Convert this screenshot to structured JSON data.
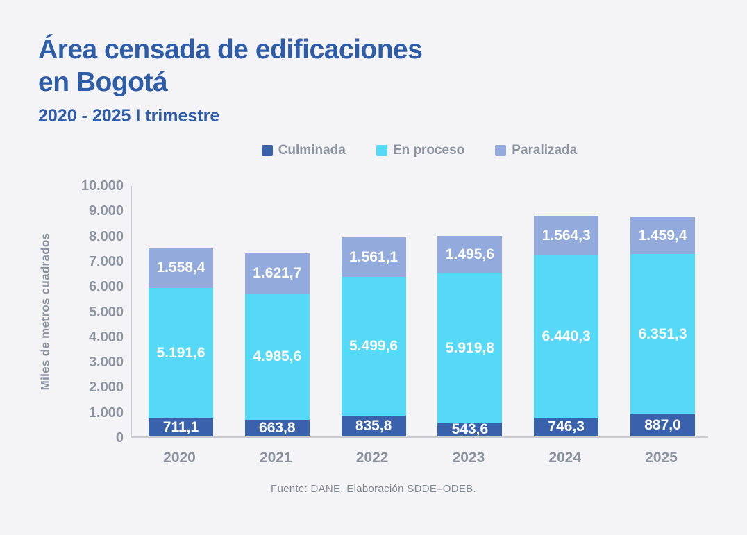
{
  "header": {
    "title_line1": "Área censada de edificaciones",
    "title_line2": "en Bogotá",
    "subtitle": "2020 - 2025 I trimestre"
  },
  "legend": [
    {
      "label": "Culminada",
      "color": "#3a62ac"
    },
    {
      "label": "En proceso",
      "color": "#55d9f7"
    },
    {
      "label": "Paralizada",
      "color": "#92abdc"
    }
  ],
  "chart_data": {
    "type": "bar",
    "stacked": true,
    "title": "Área censada de edificaciones en Bogotá",
    "subtitle": "2020 - 2025 I trimestre",
    "xlabel": "",
    "ylabel": "Miles de metros cuadrados",
    "ylim": [
      0,
      10000
    ],
    "ytick_step": 1000,
    "ytick_labels": [
      "0",
      "1.000",
      "2.000",
      "3.000",
      "4.000",
      "5.000",
      "6.000",
      "7.000",
      "8.000",
      "9.000",
      "10.000"
    ],
    "grid": "off",
    "legend_position": "top",
    "categories": [
      "2020",
      "2021",
      "2022",
      "2023",
      "2024",
      "2025"
    ],
    "series": [
      {
        "name": "Culminada",
        "color": "#3a62ac",
        "values": [
          711.1,
          663.8,
          835.8,
          543.6,
          746.3,
          887.0
        ],
        "labels": [
          "711,1",
          "663,8",
          "835,8",
          "543,6",
          "746,3",
          "887,0"
        ]
      },
      {
        "name": "En proceso",
        "color": "#55d9f7",
        "values": [
          5191.6,
          4985.6,
          5499.6,
          5919.8,
          6440.3,
          6351.3
        ],
        "labels": [
          "5.191,6",
          "4.985,6",
          "5.499,6",
          "5.919,8",
          "6.440,3",
          "6.351,3"
        ]
      },
      {
        "name": "Paralizada",
        "color": "#92abdc",
        "values": [
          1558.4,
          1621.7,
          1561.1,
          1495.6,
          1564.3,
          1459.4
        ],
        "labels": [
          "1.558,4",
          "1.621,7",
          "1.561,1",
          "1.495,6",
          "1.564,3",
          "1.459,4"
        ]
      }
    ],
    "totals": [
      7461.1,
      7271.1,
      7896.5,
      7959.0,
      8750.9,
      8697.7
    ]
  },
  "footer": {
    "source": "Fuente: DANE. Elaboración SDDE–ODEB."
  },
  "colors": {
    "background": "#f4f4f6",
    "title_blue": "#2d5ca8",
    "axis_gray": "#c9cbd1",
    "text_gray": "#8b93a1"
  }
}
